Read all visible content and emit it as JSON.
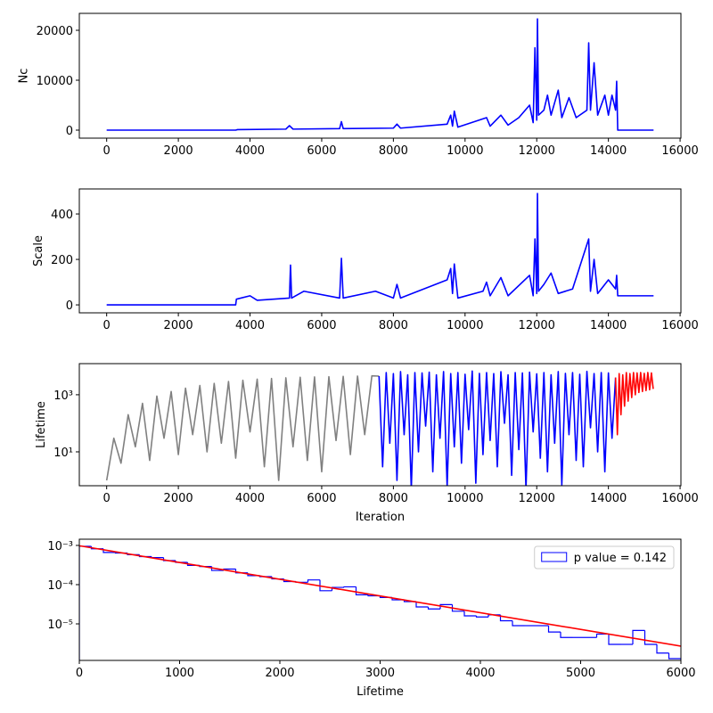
{
  "chart_data": [
    {
      "type": "line",
      "ylabel": "Nc",
      "xlim": [
        -763,
        16023
      ],
      "xticks": [
        0,
        2000,
        4000,
        6000,
        8000,
        10000,
        12000,
        14000,
        16000
      ],
      "ylim": [
        -1607,
        23393
      ],
      "yticks": [
        0,
        10000,
        20000
      ],
      "series": [
        {
          "color": "#0000ff",
          "x": [
            0,
            3600,
            3650,
            5000,
            5100,
            5200,
            6500,
            6550,
            6600,
            8000,
            8100,
            8200,
            9500,
            9600,
            9650,
            9700,
            9800,
            10600,
            10700,
            11000,
            11200,
            11500,
            11800,
            11900,
            11950,
            12000,
            12020,
            12050,
            12200,
            12300,
            12400,
            12600,
            12700,
            12900,
            13100,
            13400,
            13450,
            13500,
            13600,
            13700,
            13900,
            14000,
            14100,
            14200,
            14230,
            14260,
            15260
          ],
          "values": [
            0,
            0,
            100,
            200,
            900,
            200,
            300,
            1700,
            300,
            400,
            1200,
            400,
            1200,
            3000,
            800,
            3800,
            600,
            2500,
            800,
            3000,
            1000,
            2500,
            5000,
            1500,
            16500,
            2000,
            22300,
            3000,
            4000,
            7000,
            3000,
            8000,
            2500,
            6500,
            2500,
            4000,
            17500,
            4000,
            13500,
            3000,
            7000,
            3000,
            7000,
            4000,
            9800,
            0,
            0
          ]
        }
      ]
    },
    {
      "type": "line",
      "ylabel": "Scale",
      "xlim": [
        -763,
        16023
      ],
      "xticks": [
        0,
        2000,
        4000,
        6000,
        8000,
        10000,
        12000,
        14000,
        16000
      ],
      "ylim": [
        -35,
        510
      ],
      "yticks": [
        0,
        200,
        400
      ],
      "series": [
        {
          "color": "#0000ff",
          "x": [
            0,
            3600,
            3620,
            4000,
            4200,
            5100,
            5130,
            5160,
            5500,
            6500,
            6550,
            6600,
            7500,
            8000,
            8100,
            8200,
            9500,
            9600,
            9650,
            9700,
            9800,
            10500,
            10600,
            10700,
            11000,
            11200,
            11800,
            11900,
            11950,
            12000,
            12020,
            12050,
            12200,
            12400,
            12600,
            13000,
            13450,
            13500,
            13600,
            13700,
            14000,
            14200,
            14230,
            14260,
            15260
          ],
          "values": [
            0,
            0,
            25,
            40,
            20,
            30,
            175,
            30,
            60,
            30,
            205,
            30,
            60,
            30,
            90,
            30,
            110,
            160,
            50,
            180,
            30,
            60,
            100,
            40,
            120,
            40,
            130,
            40,
            290,
            50,
            490,
            60,
            90,
            140,
            50,
            70,
            290,
            60,
            200,
            50,
            110,
            70,
            130,
            40,
            40
          ]
        }
      ]
    },
    {
      "type": "line",
      "ylabel": "Lifetime",
      "xlabel": "Iteration",
      "log_y": true,
      "xlim": [
        -763,
        16023
      ],
      "xticks": [
        0,
        2000,
        4000,
        6000,
        8000,
        10000,
        12000,
        14000,
        16000
      ],
      "ylim": [
        0.65,
        12300
      ],
      "yticks": [
        {
          "value": 10,
          "label": "10¹"
        },
        {
          "value": 1000,
          "label": "10³"
        }
      ],
      "series": [
        {
          "color": "#808080",
          "x": [
            0,
            200,
            400,
            600,
            800,
            1000,
            1200,
            1400,
            1600,
            1800,
            2000,
            2200,
            2400,
            2600,
            2800,
            3000,
            3200,
            3400,
            3600,
            3800,
            4000,
            4200,
            4400,
            4600,
            4800,
            5000,
            5200,
            5400,
            5600,
            5800,
            6000,
            6200,
            6400,
            6600,
            6800,
            7000,
            7200,
            7400,
            7600
          ],
          "values": [
            1,
            30,
            4,
            200,
            15,
            500,
            5,
            900,
            30,
            1300,
            8,
            1700,
            40,
            2100,
            10,
            2500,
            20,
            2900,
            6,
            3200,
            50,
            3500,
            3,
            3700,
            1,
            3900,
            15,
            4100,
            5,
            4200,
            2,
            4300,
            25,
            4400,
            8,
            4500,
            40,
            4600,
            4500
          ]
        },
        {
          "color": "#0000ff",
          "x": [
            7600,
            7700,
            7800,
            7900,
            8000,
            8100,
            8200,
            8300,
            8400,
            8500,
            8600,
            8700,
            8800,
            8900,
            9000,
            9100,
            9200,
            9300,
            9400,
            9500,
            9600,
            9700,
            9800,
            9900,
            10000,
            10100,
            10200,
            10300,
            10400,
            10500,
            10600,
            10700,
            10800,
            10900,
            11000,
            11100,
            11200,
            11300,
            11400,
            11500,
            11600,
            11700,
            11800,
            11900,
            12000,
            12100,
            12200,
            12300,
            12400,
            12500,
            12600,
            12700,
            12800,
            12900,
            13000,
            13100,
            13200,
            13300,
            13400,
            13500,
            13600,
            13700,
            13800,
            13900,
            14000,
            14100,
            14200
          ],
          "values": [
            4500,
            3,
            6000,
            20,
            5500,
            1,
            6500,
            40,
            5000,
            0.5,
            6000,
            10,
            5800,
            80,
            6200,
            2,
            5000,
            30,
            6500,
            0.6,
            5500,
            15,
            6000,
            4,
            5200,
            60,
            6800,
            0.8,
            5600,
            8,
            6000,
            25,
            5500,
            3,
            6400,
            100,
            5000,
            1.5,
            6000,
            12,
            5800,
            0.5,
            6200,
            50,
            5400,
            6,
            6000,
            2,
            5000,
            20,
            6500,
            0.7,
            5600,
            40,
            6000,
            5,
            5200,
            3,
            6600,
            70,
            5500,
            10,
            6000,
            2,
            5800,
            30,
            4000
          ]
        },
        {
          "color": "#ff0000",
          "x": [
            14200,
            14250,
            14300,
            14350,
            14400,
            14450,
            14500,
            14550,
            14600,
            14650,
            14700,
            14750,
            14800,
            14850,
            14900,
            14950,
            15000,
            15050,
            15100,
            15150,
            15200,
            15250
          ],
          "values": [
            4000,
            40,
            5500,
            200,
            5000,
            400,
            6000,
            600,
            5500,
            800,
            6000,
            1000,
            5800,
            1200,
            6000,
            1300,
            5600,
            1400,
            6000,
            1500,
            5800,
            1600
          ]
        }
      ]
    },
    {
      "type": "histogram",
      "xlabel": "Lifetime",
      "log_y": true,
      "legend": "upper right",
      "xlim": [
        0,
        6000
      ],
      "xticks": [
        0,
        1000,
        2000,
        3000,
        4000,
        5000,
        6000
      ],
      "ylim": [
        1.17e-06,
        0.00144
      ],
      "yticks": [
        {
          "value": 0.001,
          "label": "10⁻³"
        },
        {
          "value": 0.0001,
          "label": "10⁻⁴"
        },
        {
          "value": 1e-05,
          "label": "10⁻⁵"
        }
      ],
      "series": [
        {
          "type": "histogram",
          "name": "p value = 0.142",
          "color": "#0000ff",
          "bins": [
            0,
            120,
            240,
            360,
            480,
            600,
            720,
            840,
            960,
            1080,
            1200,
            1320,
            1440,
            1560,
            1680,
            1800,
            1920,
            2040,
            2160,
            2280,
            2400,
            2520,
            2640,
            2760,
            2880,
            3000,
            3120,
            3240,
            3360,
            3480,
            3600,
            3720,
            3840,
            3960,
            4080,
            4200,
            4320,
            4440,
            4560,
            4680,
            4800,
            4920,
            5040,
            5160,
            5280,
            5400,
            5520,
            5640,
            5760,
            5880,
            6000
          ],
          "values": [
            0.00095,
            0.00082,
            0.00066,
            0.00064,
            0.00058,
            0.00052,
            0.00049,
            0.00041,
            0.00037,
            0.00031,
            0.00029,
            0.00023,
            0.00025,
            0.0002,
            0.00017,
            0.00016,
            0.00014,
            0.00012,
            0.000115,
            0.000132,
            7e-05,
            8.5e-05,
            8.8e-05,
            5.5e-05,
            5.2e-05,
            4.7e-05,
            4.1e-05,
            3.7e-05,
            2.7e-05,
            2.4e-05,
            3.1e-05,
            2.1e-05,
            1.6e-05,
            1.5e-05,
            1.7e-05,
            1.2e-05,
            9e-06,
            9e-06,
            9e-06,
            6.2e-06,
            4.5e-06,
            4.5e-06,
            4.5e-06,
            5.5e-06,
            3e-06,
            3e-06,
            6.8e-06,
            3e-06,
            1.8e-06,
            1.3e-06
          ]
        },
        {
          "type": "line",
          "color": "#ff0000",
          "x": [
            0,
            6000
          ],
          "values": [
            0.00098,
            2.7e-06
          ]
        }
      ]
    }
  ]
}
